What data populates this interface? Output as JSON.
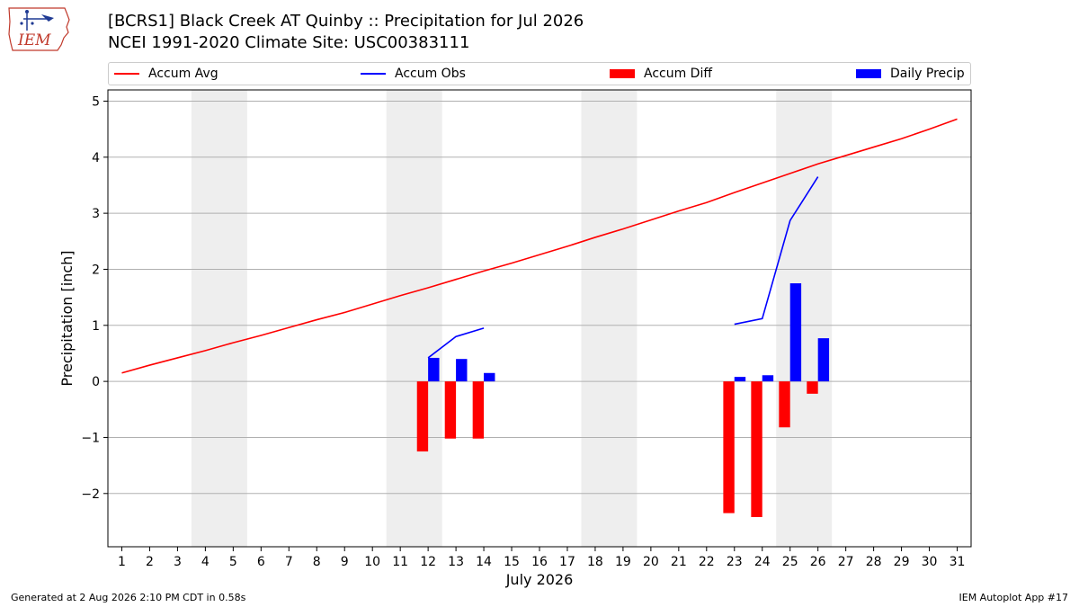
{
  "logo": {
    "text": "IEM",
    "icon": "iem-iowa-logo"
  },
  "chart_data": {
    "type": "bar",
    "title": "[BCRS1] Black Creek  AT Quinby :: Precipitation for Jul 2026",
    "subtitle": "NCEI 1991-2020 Climate Site: USC00383111",
    "xlabel": "July 2026",
    "ylabel": "Precipitation [inch]",
    "xlim": [
      0.5,
      31.5
    ],
    "ylim": [
      -2.95,
      5.2
    ],
    "yticks": [
      -2,
      -1,
      0,
      1,
      2,
      3,
      4,
      5
    ],
    "xticks": [
      "1",
      "2",
      "3",
      "4",
      "5",
      "6",
      "7",
      "8",
      "9",
      "10",
      "11",
      "12",
      "13",
      "14",
      "15",
      "16",
      "17",
      "18",
      "19",
      "20",
      "21",
      "22",
      "23",
      "24",
      "25",
      "26",
      "27",
      "28",
      "29",
      "30",
      "31"
    ],
    "grid": true,
    "legend_position": "top",
    "weekend_bands": [
      [
        3.5,
        5.5
      ],
      [
        10.5,
        12.5
      ],
      [
        17.5,
        19.5
      ],
      [
        24.5,
        26.5
      ]
    ],
    "series": [
      {
        "name": "Accum Avg",
        "kind": "line",
        "color": "#ff0000",
        "x": [
          1,
          2,
          3,
          4,
          5,
          6,
          7,
          8,
          9,
          10,
          11,
          12,
          13,
          14,
          15,
          16,
          17,
          18,
          19,
          20,
          21,
          22,
          23,
          24,
          25,
          26,
          27,
          28,
          29,
          30,
          31
        ],
        "values": [
          0.15,
          0.29,
          0.42,
          0.55,
          0.69,
          0.82,
          0.96,
          1.1,
          1.23,
          1.38,
          1.53,
          1.67,
          1.82,
          1.97,
          2.11,
          2.26,
          2.41,
          2.57,
          2.72,
          2.88,
          3.04,
          3.19,
          3.37,
          3.54,
          3.71,
          3.88,
          4.03,
          4.18,
          4.33,
          4.5,
          4.68
        ]
      },
      {
        "name": "Accum Obs",
        "kind": "line",
        "color": "#0000ff",
        "segments": [
          {
            "x": [
              12,
              13,
              14
            ],
            "values": [
              0.42,
              0.8,
              0.95
            ]
          },
          {
            "x": [
              23,
              24,
              25,
              26
            ],
            "values": [
              1.02,
              1.12,
              2.87,
              3.65
            ]
          }
        ]
      },
      {
        "name": "Accum Diff",
        "kind": "bar",
        "color": "#ff0000",
        "x": [
          12,
          13,
          14,
          23,
          24,
          25,
          26
        ],
        "values": [
          -1.25,
          -1.02,
          -1.02,
          -2.35,
          -2.42,
          -0.82,
          -0.22
        ]
      },
      {
        "name": "Daily Precip",
        "kind": "bar",
        "color": "#0000ff",
        "x": [
          12,
          13,
          14,
          23,
          24,
          25,
          26
        ],
        "values": [
          0.42,
          0.4,
          0.15,
          0.08,
          0.11,
          1.75,
          0.77
        ]
      }
    ]
  },
  "footer": {
    "generated": "Generated at 2 Aug 2026 2:10 PM CDT in 0.58s",
    "app": "IEM Autoplot App #17"
  }
}
